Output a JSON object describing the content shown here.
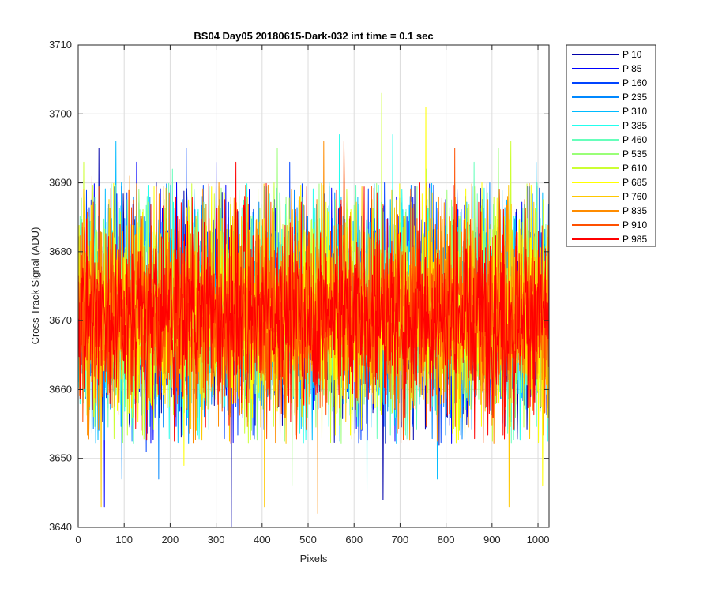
{
  "chart_data": {
    "type": "line",
    "title": "BS04 Day05 20180615-Dark-032 int time = 0.1 sec",
    "xlabel": "Pixels",
    "ylabel": "Cross Track Signal (ADU)",
    "xlim": [
      0,
      1024
    ],
    "ylim": [
      3640,
      3710
    ],
    "xticks": [
      0,
      100,
      200,
      300,
      400,
      500,
      600,
      700,
      800,
      900,
      1000
    ],
    "yticks": [
      3640,
      3650,
      3660,
      3670,
      3680,
      3690,
      3700,
      3710
    ],
    "grid": true,
    "legend_position": "outside-top-right",
    "series": [
      {
        "name": "P 10",
        "color": "#0000AA",
        "peaks": [
          {
            "x": 45,
            "y": 3695
          },
          {
            "x": 333,
            "y": 3640
          },
          {
            "x": 663,
            "y": 3644
          }
        ]
      },
      {
        "name": "P 85",
        "color": "#0000FF",
        "peaks": [
          {
            "x": 57,
            "y": 3643
          },
          {
            "x": 127,
            "y": 3693
          },
          {
            "x": 300,
            "y": 3693
          }
        ]
      },
      {
        "name": "P 160",
        "color": "#0044FF",
        "peaks": [
          {
            "x": 148,
            "y": 3651
          },
          {
            "x": 235,
            "y": 3695
          },
          {
            "x": 460,
            "y": 3693
          }
        ]
      },
      {
        "name": "P 235",
        "color": "#0088FF",
        "peaks": [
          {
            "x": 95,
            "y": 3647
          },
          {
            "x": 175,
            "y": 3647
          },
          {
            "x": 895,
            "y": 3690
          }
        ]
      },
      {
        "name": "P 310",
        "color": "#00BBFF",
        "peaks": [
          {
            "x": 82,
            "y": 3696
          },
          {
            "x": 781,
            "y": 3647
          },
          {
            "x": 996,
            "y": 3693
          }
        ]
      },
      {
        "name": "P 385",
        "color": "#22FFEE",
        "peaks": [
          {
            "x": 568,
            "y": 3697
          },
          {
            "x": 628,
            "y": 3645
          },
          {
            "x": 684,
            "y": 3697
          }
        ]
      },
      {
        "name": "P 460",
        "color": "#66FFBB",
        "peaks": [
          {
            "x": 205,
            "y": 3692
          },
          {
            "x": 757,
            "y": 3692
          },
          {
            "x": 861,
            "y": 3693
          }
        ]
      },
      {
        "name": "P 535",
        "color": "#99FF77",
        "peaks": [
          {
            "x": 433,
            "y": 3695
          },
          {
            "x": 465,
            "y": 3646
          },
          {
            "x": 914,
            "y": 3695
          }
        ]
      },
      {
        "name": "P 610",
        "color": "#CCFF33",
        "peaks": [
          {
            "x": 12,
            "y": 3693
          },
          {
            "x": 660,
            "y": 3703
          },
          {
            "x": 941,
            "y": 3696
          }
        ]
      },
      {
        "name": "P 685",
        "color": "#FFFF00",
        "peaks": [
          {
            "x": 756,
            "y": 3701
          },
          {
            "x": 1010,
            "y": 3646
          },
          {
            "x": 230,
            "y": 3649
          }
        ]
      },
      {
        "name": "P 760",
        "color": "#FFC800",
        "peaks": [
          {
            "x": 50,
            "y": 3643
          },
          {
            "x": 405,
            "y": 3643
          },
          {
            "x": 937,
            "y": 3643
          }
        ]
      },
      {
        "name": "P 835",
        "color": "#FF8C00",
        "peaks": [
          {
            "x": 521,
            "y": 3642
          },
          {
            "x": 534,
            "y": 3696
          },
          {
            "x": 112,
            "y": 3691
          }
        ]
      },
      {
        "name": "P 910",
        "color": "#FF5000",
        "peaks": [
          {
            "x": 30,
            "y": 3691
          },
          {
            "x": 578,
            "y": 3696
          },
          {
            "x": 819,
            "y": 3695
          }
        ]
      },
      {
        "name": "P 985",
        "color": "#FF0000",
        "peaks": [
          {
            "x": 343,
            "y": 3693
          },
          {
            "x": 743,
            "y": 3690
          },
          {
            "x": 1024,
            "y": 3690
          }
        ]
      }
    ],
    "mean": 3671,
    "spread": 8
  }
}
